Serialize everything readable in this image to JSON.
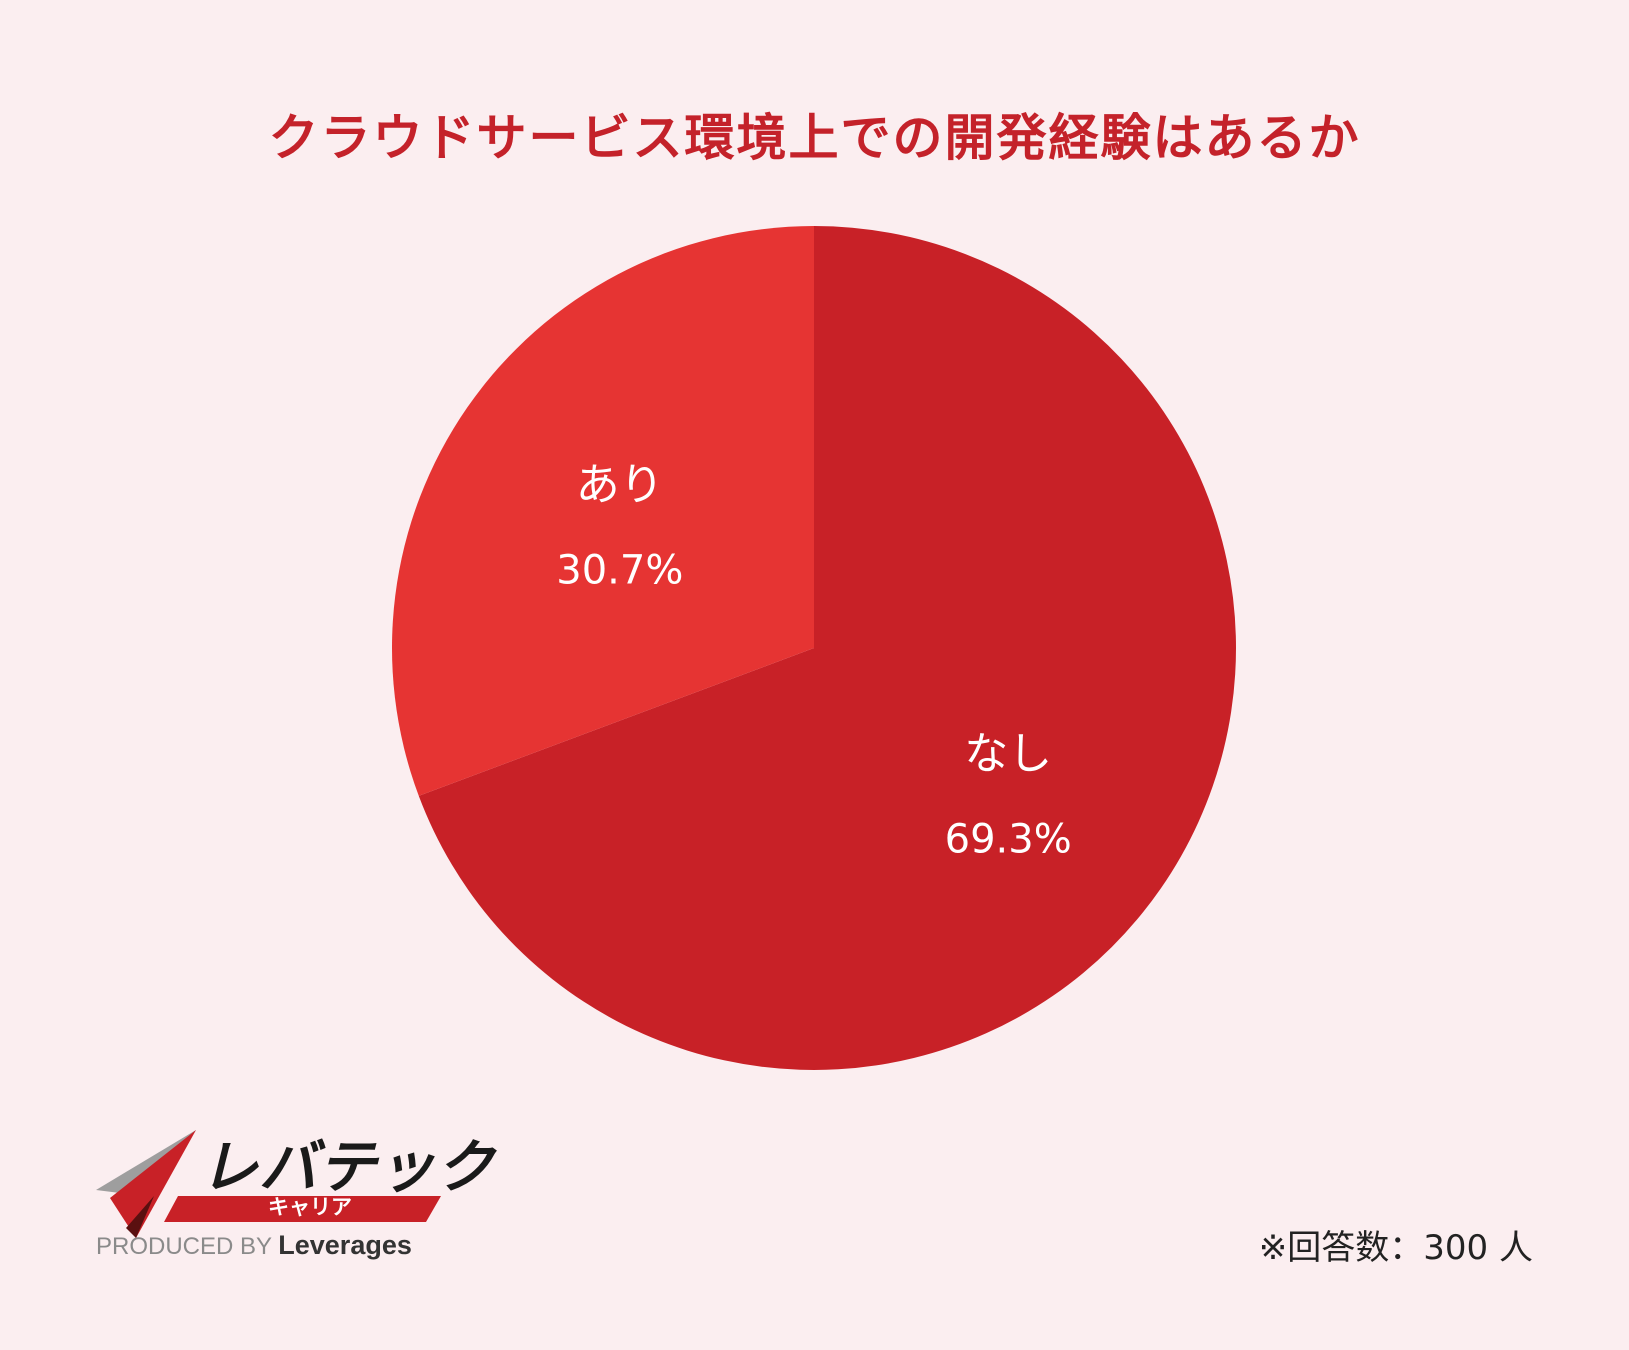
{
  "title": "クラウドサービス環境上での開発経験はあるか",
  "chart_data": {
    "type": "pie",
    "categories": [
      "なし",
      "あり"
    ],
    "values": [
      69.3,
      30.7
    ],
    "value_labels": [
      "69.3%",
      "30.7%"
    ],
    "colors": [
      "#c82127",
      "#e63433"
    ]
  },
  "logo": {
    "name": "レバテック",
    "sub": "キャリア",
    "produced_by": "PRODUCED BY",
    "brand": "Leverages"
  },
  "note": "※回答数：300 人",
  "colors": {
    "background": "#fbeef0",
    "title": "#c4222a"
  }
}
